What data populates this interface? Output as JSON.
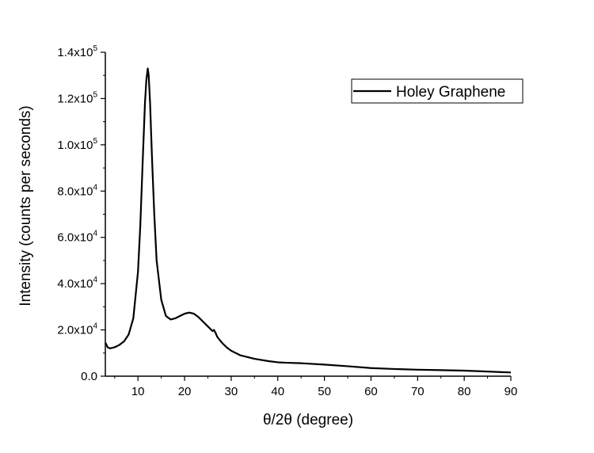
{
  "chart_data": {
    "type": "line",
    "title": "",
    "xlabel": "θ/2θ (degree)",
    "ylabel": "Intensity (counts per seconds)",
    "xlim": [
      3,
      90
    ],
    "ylim": [
      0,
      140000
    ],
    "x_ticks": [
      10,
      20,
      30,
      40,
      50,
      60,
      70,
      80,
      90
    ],
    "x_tick_labels": [
      "10",
      "20",
      "30",
      "40",
      "50",
      "60",
      "70",
      "80",
      "90"
    ],
    "y_ticks": [
      0,
      20000,
      40000,
      60000,
      80000,
      100000,
      120000,
      140000
    ],
    "y_tick_labels": [
      {
        "mantissa": "0.0",
        "exponent": ""
      },
      {
        "mantissa": "2.0x10",
        "exponent": "4"
      },
      {
        "mantissa": "4.0x10",
        "exponent": "4"
      },
      {
        "mantissa": "6.0x10",
        "exponent": "4"
      },
      {
        "mantissa": "8.0x10",
        "exponent": "4"
      },
      {
        "mantissa": "1.0x10",
        "exponent": "5"
      },
      {
        "mantissa": "1.2x10",
        "exponent": "5"
      },
      {
        "mantissa": "1.4x10",
        "exponent": "5"
      }
    ],
    "grid": false,
    "legend": {
      "position": "top-right",
      "entries": [
        "Holey Graphene"
      ]
    },
    "series": [
      {
        "name": "Holey Graphene",
        "color": "#000000",
        "x": [
          3,
          3.5,
          4,
          5,
          6,
          7,
          8,
          9,
          10,
          10.5,
          11,
          11.5,
          11.8,
          12.1,
          12.3,
          12.6,
          13,
          13.5,
          14,
          15,
          16,
          17,
          18,
          19,
          20,
          21,
          22,
          23,
          24,
          25,
          26,
          26.3,
          26.7,
          27,
          28,
          29,
          30,
          32,
          35,
          38,
          40,
          42,
          45,
          50,
          55,
          60,
          65,
          70,
          75,
          80,
          85,
          90
        ],
        "y": [
          14500,
          12500,
          12000,
          12500,
          13500,
          15000,
          18000,
          25000,
          45000,
          65000,
          92000,
          118000,
          128000,
          133000,
          130000,
          118000,
          95000,
          70000,
          50000,
          33000,
          26000,
          24500,
          25000,
          26000,
          27000,
          27500,
          27000,
          25500,
          23500,
          21500,
          19500,
          20000,
          18500,
          17000,
          14500,
          12500,
          11000,
          9000,
          7500,
          6500,
          6000,
          5800,
          5600,
          5000,
          4300,
          3500,
          3100,
          2800,
          2600,
          2400,
          2000,
          1600
        ]
      }
    ]
  }
}
